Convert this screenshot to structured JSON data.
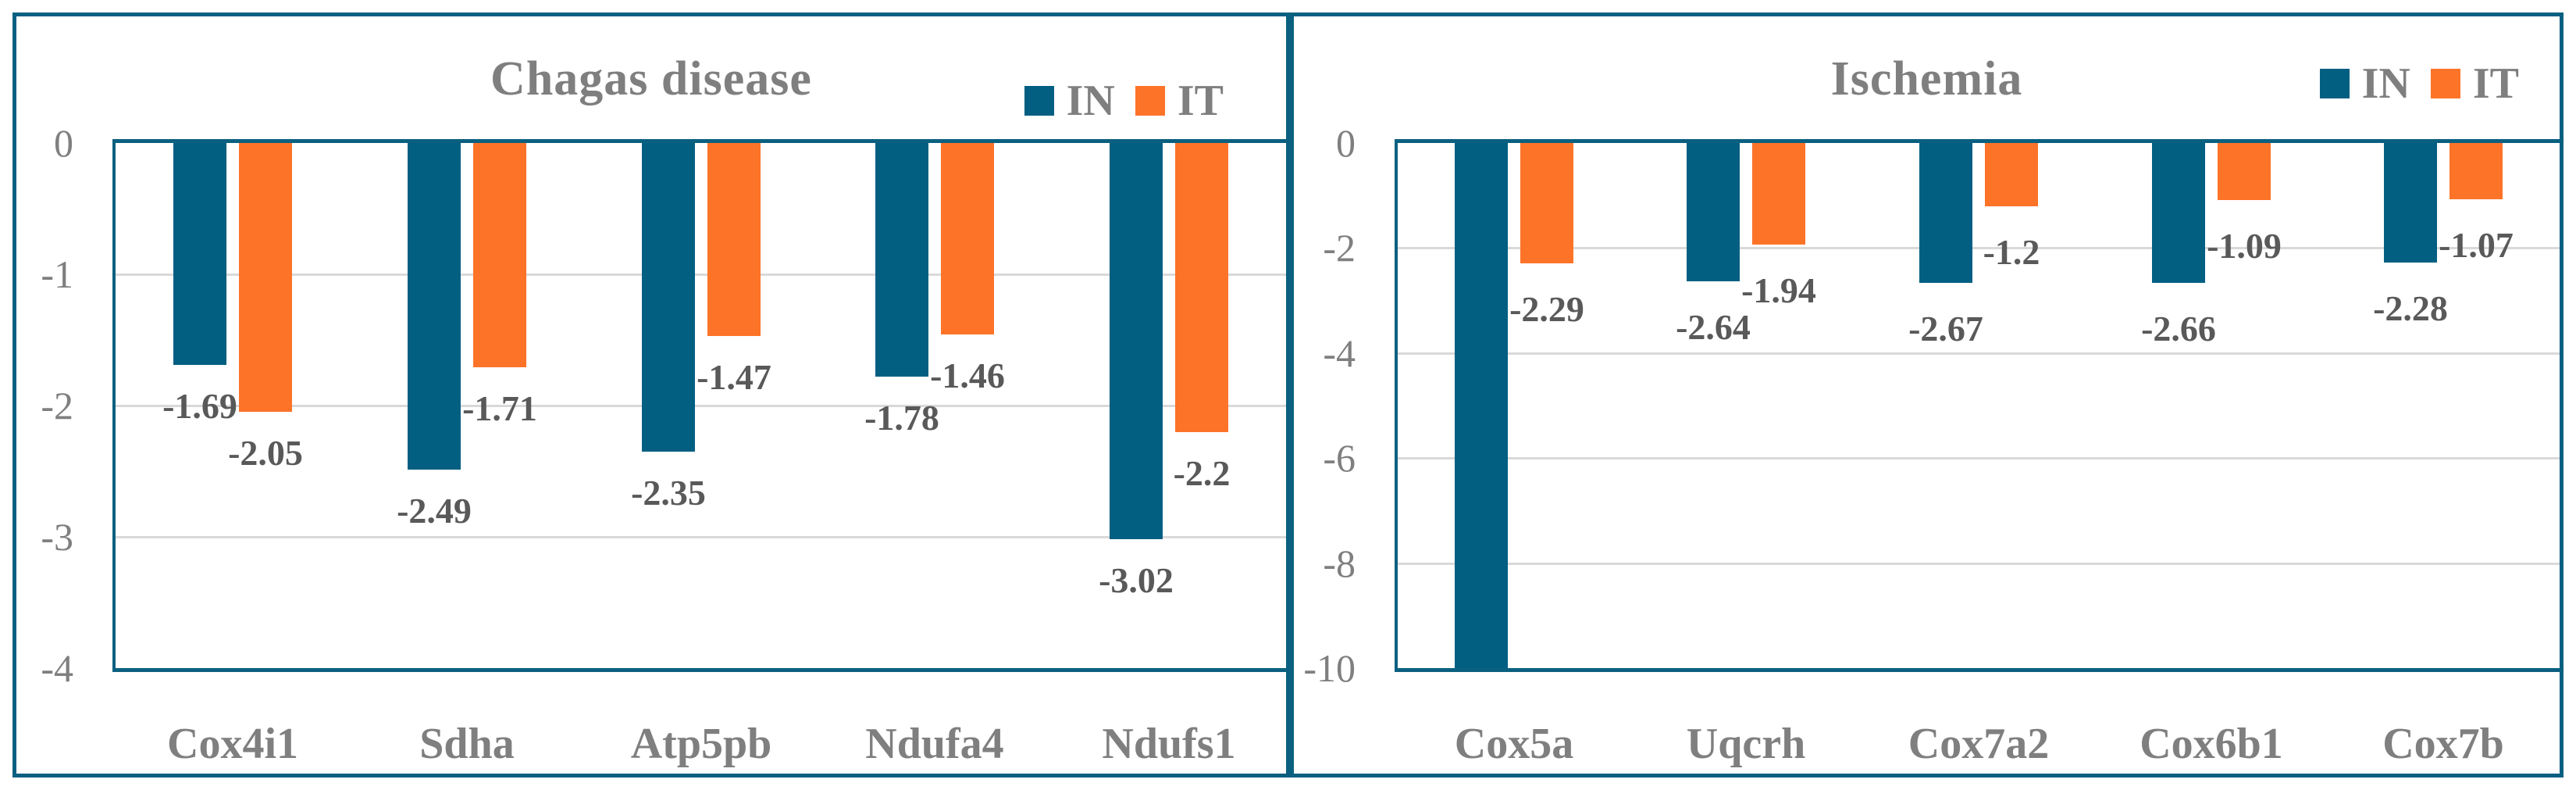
{
  "colors": {
    "in_bar": "#025f82",
    "it_bar": "#fd7328",
    "frame_border": "#0b6080",
    "gridline": "#d9d9d9",
    "title_text": "#7f7f7f",
    "axis_text": "#7f7f7f",
    "data_label_text": "#595959",
    "background": "#ffffff"
  },
  "chart_data": [
    {
      "type": "bar",
      "title": "Chagas disease",
      "categories": [
        "Cox4i1",
        "Sdha",
        "Atp5pb",
        "Ndufa4",
        "Ndufs1"
      ],
      "series": [
        {
          "name": "IN",
          "color": "#025f82",
          "values": [
            -1.69,
            -2.49,
            -2.35,
            -1.78,
            -3.02
          ],
          "labels": [
            "-1.69",
            "-2.49",
            "-2.35",
            "-1.78",
            "-3.02"
          ]
        },
        {
          "name": "IT",
          "color": "#fd7328",
          "values": [
            -2.05,
            -1.71,
            -1.47,
            -1.46,
            -2.2
          ],
          "labels": [
            "-2.05",
            "-1.71",
            "-1.47",
            "-1.46",
            "-2.2"
          ]
        }
      ],
      "ylim": [
        -4,
        0
      ],
      "yticks": [
        "0",
        "-1",
        "-2",
        "-3",
        "-4"
      ],
      "grid": true,
      "legend_position": "top-right"
    },
    {
      "type": "bar",
      "title": "Ischemia",
      "categories": [
        "Cox5a",
        "Uqcrh",
        "Cox7a2",
        "Cox6b1",
        "Cox7b"
      ],
      "series": [
        {
          "name": "IN",
          "color": "#025f82",
          "values": [
            -10,
            -2.64,
            -2.67,
            -2.66,
            -2.28
          ],
          "labels": [
            "",
            "-2.64",
            "-2.67",
            "-2.66",
            "-2.28"
          ]
        },
        {
          "name": "IT",
          "color": "#fd7328",
          "values": [
            -2.29,
            -1.94,
            -1.2,
            -1.09,
            -1.07
          ],
          "labels": [
            "-2.29",
            "-1.94",
            "-1.2",
            "-1.09",
            "-1.07"
          ]
        }
      ],
      "ylim": [
        -10,
        0
      ],
      "yticks": [
        "0",
        "-2",
        "-4",
        "-6",
        "-8",
        "-10"
      ],
      "grid": true,
      "legend_position": "top-right"
    }
  ]
}
